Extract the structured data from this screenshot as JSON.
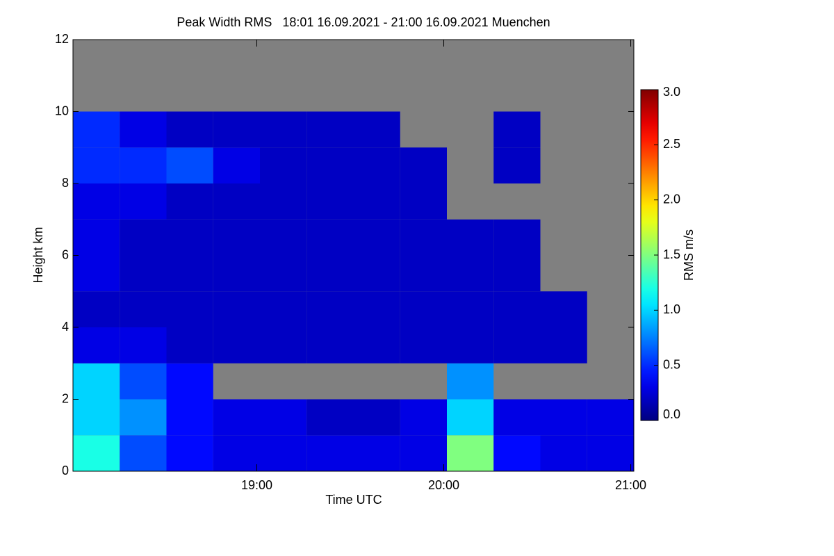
{
  "chart_data": {
    "type": "heatmap",
    "title": "Peak Width RMS   18:01 16.09.2021 - 21:00 16.09.2021 Muenchen",
    "x_label": "Time UTC",
    "y_label": "Height km",
    "colorbar_label": "RMS m/s",
    "x": [
      1081,
      1096,
      1111,
      1126,
      1141,
      1156,
      1171,
      1186,
      1201,
      1216,
      1231,
      1246,
      1261
    ],
    "y": [
      0,
      1,
      2,
      3,
      4,
      5,
      6,
      7,
      8,
      9,
      10,
      11,
      12
    ],
    "values": [
      [
        1.2,
        0.6,
        0.4,
        0.3,
        0.3,
        0.3,
        0.3,
        0.3,
        1.5,
        0.4,
        0.3,
        0.3
      ],
      [
        1.0,
        0.8,
        0.4,
        0.3,
        0.3,
        0.2,
        0.2,
        0.3,
        1.0,
        0.3,
        0.3,
        0.3
      ],
      [
        1.0,
        0.6,
        0.4,
        null,
        null,
        null,
        null,
        null,
        0.8,
        null,
        null,
        null
      ],
      [
        0.3,
        0.3,
        0.2,
        0.2,
        0.2,
        0.2,
        0.2,
        0.2,
        0.2,
        0.2,
        0.2,
        null
      ],
      [
        0.2,
        0.2,
        0.2,
        0.2,
        0.2,
        0.2,
        0.2,
        0.2,
        0.2,
        0.2,
        0.2,
        null
      ],
      [
        0.3,
        0.2,
        0.2,
        0.2,
        0.2,
        0.2,
        0.2,
        0.2,
        0.2,
        0.2,
        null,
        null
      ],
      [
        0.3,
        0.2,
        0.2,
        0.2,
        0.2,
        0.2,
        0.2,
        0.2,
        0.2,
        0.2,
        null,
        null
      ],
      [
        0.3,
        0.3,
        0.2,
        0.2,
        0.2,
        0.2,
        0.2,
        0.2,
        null,
        null,
        null,
        null
      ],
      [
        0.5,
        0.5,
        0.6,
        0.3,
        0.2,
        0.2,
        0.2,
        0.2,
        null,
        0.2,
        null,
        null
      ],
      [
        0.5,
        0.3,
        0.2,
        0.2,
        0.2,
        0.2,
        0.2,
        null,
        null,
        0.2,
        null,
        null
      ],
      [
        null,
        null,
        null,
        null,
        null,
        null,
        null,
        null,
        null,
        null,
        null,
        null
      ],
      [
        null,
        null,
        null,
        null,
        null,
        null,
        null,
        null,
        null,
        null,
        null,
        null
      ]
    ],
    "xlim": [
      1081,
      1261
    ],
    "xticks": [
      {
        "value": 1140,
        "label": "19:00"
      },
      {
        "value": 1200,
        "label": "20:00"
      },
      {
        "value": 1260,
        "label": "21:00"
      }
    ],
    "ylim": [
      0,
      12
    ],
    "yticks": [
      0,
      2,
      4,
      6,
      8,
      10,
      12
    ],
    "clim": [
      0,
      3
    ],
    "cticks": [
      {
        "value": 0,
        "label": "0.0"
      },
      {
        "value": 0.5,
        "label": "0.5"
      },
      {
        "value": 1,
        "label": "1.0"
      },
      {
        "value": 1.5,
        "label": "1.5"
      },
      {
        "value": 2,
        "label": "2.0"
      },
      {
        "value": 2.5,
        "label": "2.5"
      },
      {
        "value": 3,
        "label": "3.0"
      }
    ],
    "colormap": "jet",
    "missing_color": "#808080"
  }
}
